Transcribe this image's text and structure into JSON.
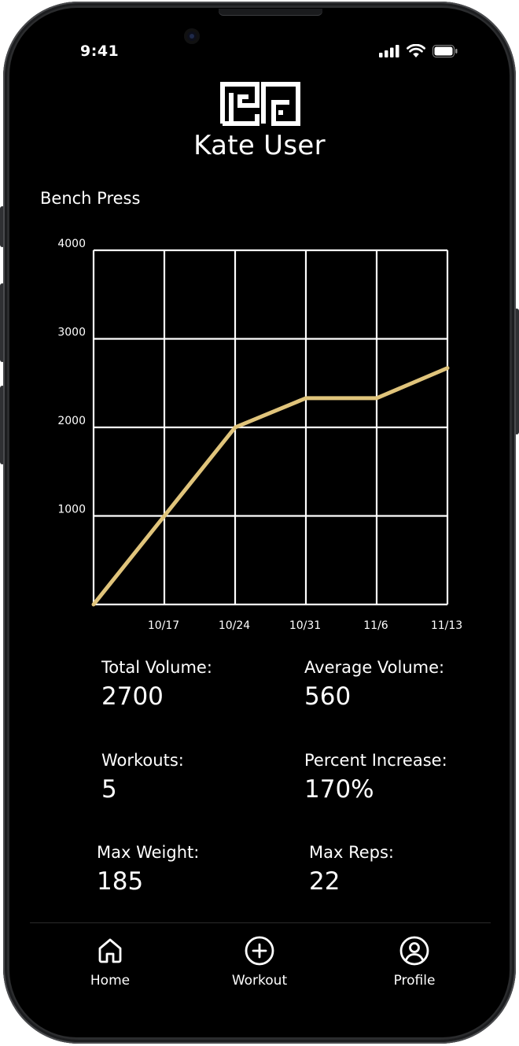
{
  "status_bar": {
    "time": "9:41",
    "icons": [
      "cellular-signal-icon",
      "wifi-icon",
      "battery-icon"
    ]
  },
  "header": {
    "logo_icon": "greek-key-logo-icon",
    "user_name": "Kate User"
  },
  "exercise": {
    "title": "Bench Press"
  },
  "chart_data": {
    "type": "line",
    "title": "",
    "xlabel": "",
    "ylabel": "",
    "x_ticks": [
      "10/17",
      "10/24",
      "10/31",
      "11/6",
      "11/13"
    ],
    "y_ticks": [
      "1000",
      "2000",
      "3000",
      "4000"
    ],
    "ylim": [
      0,
      4000
    ],
    "grid": true,
    "series": [
      {
        "points": [
          {
            "x": "start",
            "y": 0
          },
          {
            "x": "10/17",
            "y": 1000
          },
          {
            "x": "10/24",
            "y": 2000
          },
          {
            "x": "10/31",
            "y": 2330
          },
          {
            "x": "11/6",
            "y": 2330
          },
          {
            "x": "11/13",
            "y": 2670
          }
        ]
      }
    ],
    "colors": {
      "line": "#e0c47b",
      "grid": "#ffffff"
    }
  },
  "stats": {
    "total_volume_label": "Total Volume:",
    "total_volume_value": "2700",
    "average_volume_label": "Average Volume:",
    "average_volume_value": "560",
    "workouts_label": "Workouts:",
    "workouts_value": "5",
    "percent_increase_label": "Percent Increase:",
    "percent_increase_value": "170%",
    "max_weight_label": "Max Weight:",
    "max_weight_value": "185",
    "max_reps_label": "Max Reps:",
    "max_reps_value": "22"
  },
  "nav": {
    "items": [
      {
        "label": "Home",
        "icon": "home-icon"
      },
      {
        "label": "Workout",
        "icon": "plus-circle-icon"
      },
      {
        "label": "Profile",
        "icon": "user-circle-icon"
      }
    ]
  },
  "colors": {
    "background": "#000000",
    "text": "#ffffff",
    "accent": "#e0c47b"
  }
}
